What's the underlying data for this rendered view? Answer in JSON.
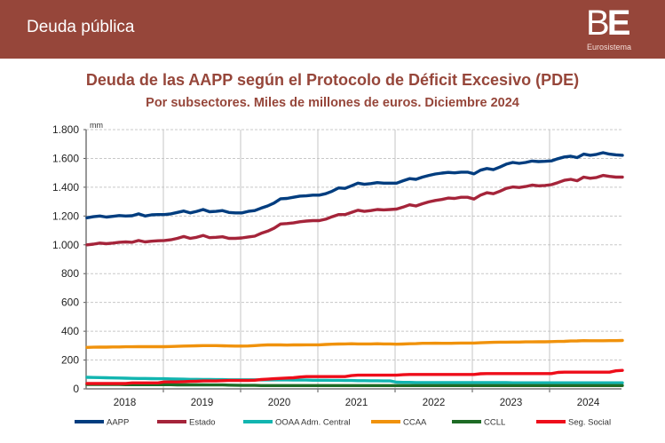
{
  "header": {
    "title": "Deuda pública",
    "logo_mark_b": "B",
    "logo_mark_e": "E",
    "logo_sub": "Eurosistema"
  },
  "chart_data": {
    "type": "line",
    "title": "Deuda de las AAPP según el Protocolo de Déficit Excesivo (PDE)",
    "subtitle": "Por subsectores. Miles de millones de euros. Diciembre 2024",
    "unit_label": "mm",
    "xlabel": "",
    "ylabel": "",
    "ylim": [
      0,
      1800
    ],
    "yticks": [
      0,
      200,
      400,
      600,
      800,
      1000,
      1200,
      1400,
      1600,
      1800
    ],
    "ytick_labels": [
      "0",
      "200",
      "400",
      "600",
      "800",
      "1.000",
      "1.200",
      "1.400",
      "1.600",
      "1.800"
    ],
    "x_start": "2018-01",
    "x_end": "2024-12",
    "frequency": "monthly",
    "xtick_labels": [
      "2018",
      "2019",
      "2020",
      "2021",
      "2022",
      "2023",
      "2024"
    ],
    "grid": true,
    "legend_position": "bottom",
    "series": [
      {
        "name": "AAPP",
        "color": "#003d7f",
        "values": [
          1188,
          1195,
          1200,
          1193,
          1198,
          1203,
          1200,
          1202,
          1215,
          1200,
          1208,
          1210,
          1210,
          1215,
          1225,
          1235,
          1222,
          1232,
          1245,
          1230,
          1232,
          1238,
          1225,
          1222,
          1222,
          1232,
          1238,
          1255,
          1270,
          1290,
          1320,
          1322,
          1330,
          1338,
          1340,
          1345,
          1345,
          1355,
          1372,
          1395,
          1392,
          1410,
          1428,
          1420,
          1425,
          1432,
          1428,
          1428,
          1428,
          1445,
          1460,
          1455,
          1470,
          1482,
          1492,
          1498,
          1503,
          1500,
          1505,
          1505,
          1493,
          1518,
          1530,
          1522,
          1540,
          1560,
          1572,
          1566,
          1572,
          1582,
          1578,
          1580,
          1583,
          1598,
          1610,
          1615,
          1606,
          1630,
          1622,
          1628,
          1640,
          1630,
          1625,
          1622
        ]
      },
      {
        "name": "Estado",
        "color": "#a5243a",
        "values": [
          1000,
          1005,
          1012,
          1008,
          1012,
          1018,
          1020,
          1018,
          1030,
          1020,
          1025,
          1028,
          1030,
          1035,
          1045,
          1058,
          1045,
          1052,
          1065,
          1050,
          1052,
          1056,
          1045,
          1045,
          1048,
          1055,
          1060,
          1080,
          1095,
          1115,
          1145,
          1148,
          1152,
          1160,
          1165,
          1168,
          1168,
          1178,
          1195,
          1210,
          1210,
          1225,
          1240,
          1232,
          1238,
          1245,
          1243,
          1245,
          1248,
          1262,
          1278,
          1270,
          1285,
          1298,
          1308,
          1315,
          1325,
          1322,
          1330,
          1330,
          1318,
          1345,
          1362,
          1355,
          1372,
          1392,
          1402,
          1398,
          1405,
          1415,
          1410,
          1412,
          1418,
          1432,
          1448,
          1455,
          1445,
          1470,
          1462,
          1468,
          1482,
          1475,
          1470,
          1470
        ]
      },
      {
        "name": "OOAA Adm. Central",
        "color": "#12b5b0",
        "values": [
          80,
          79,
          78,
          77,
          76,
          75,
          74,
          73,
          72,
          72,
          71,
          70,
          70,
          69,
          68,
          67,
          66,
          66,
          65,
          65,
          64,
          64,
          63,
          63,
          63,
          63,
          63,
          62,
          62,
          62,
          62,
          62,
          61,
          61,
          61,
          60,
          60,
          60,
          59,
          59,
          58,
          58,
          57,
          57,
          56,
          56,
          55,
          55,
          46,
          45,
          45,
          44,
          44,
          44,
          44,
          43,
          43,
          43,
          43,
          43,
          43,
          43,
          43,
          43,
          43,
          43,
          42,
          42,
          42,
          42,
          42,
          42,
          42,
          42,
          42,
          42,
          42,
          42,
          42,
          42,
          42,
          42,
          42,
          42
        ]
      },
      {
        "name": "CCAA",
        "color": "#f0920c",
        "values": [
          288,
          289,
          290,
          290,
          291,
          291,
          292,
          292,
          293,
          293,
          293,
          293,
          293,
          294,
          295,
          297,
          298,
          299,
          300,
          300,
          300,
          299,
          298,
          297,
          297,
          298,
          300,
          303,
          305,
          306,
          305,
          304,
          305,
          305,
          306,
          306,
          306,
          308,
          310,
          311,
          312,
          313,
          312,
          312,
          312,
          313,
          312,
          312,
          310,
          311,
          313,
          314,
          316,
          316,
          317,
          316,
          316,
          317,
          318,
          318,
          318,
          320,
          322,
          323,
          324,
          324,
          325,
          325,
          326,
          326,
          327,
          327,
          328,
          329,
          330,
          332,
          333,
          335,
          334,
          334,
          334,
          335,
          335,
          336
        ]
      },
      {
        "name": "CCLL",
        "color": "#1d6b25",
        "values": [
          30,
          30,
          30,
          30,
          30,
          30,
          29,
          29,
          29,
          29,
          29,
          29,
          29,
          29,
          28,
          28,
          28,
          28,
          28,
          27,
          27,
          27,
          26,
          25,
          24,
          24,
          24,
          23,
          23,
          23,
          23,
          23,
          23,
          23,
          23,
          23,
          23,
          23,
          23,
          23,
          23,
          23,
          23,
          23,
          23,
          23,
          23,
          23,
          23,
          23,
          23,
          23,
          23,
          23,
          23,
          23,
          23,
          23,
          23,
          23,
          23,
          23,
          23,
          23,
          23,
          23,
          23,
          23,
          23,
          23,
          23,
          23,
          23,
          23,
          23,
          23,
          23,
          23,
          23,
          23,
          23,
          23,
          23,
          23
        ]
      },
      {
        "name": "Seg. Social",
        "color": "#ee0d1a",
        "values": [
          37,
          37,
          37,
          37,
          37,
          37,
          37,
          41,
          41,
          41,
          41,
          41,
          48,
          48,
          48,
          50,
          52,
          53,
          55,
          55,
          55,
          57,
          58,
          58,
          58,
          58,
          60,
          65,
          67,
          70,
          73,
          75,
          77,
          82,
          85,
          85,
          85,
          85,
          85,
          85,
          85,
          92,
          95,
          95,
          95,
          95,
          95,
          95,
          95,
          98,
          100,
          100,
          100,
          100,
          100,
          100,
          100,
          100,
          100,
          100,
          100,
          105,
          106,
          106,
          106,
          106,
          106,
          106,
          106,
          106,
          106,
          106,
          106,
          114,
          116,
          116,
          116,
          116,
          116,
          116,
          116,
          116,
          125,
          128
        ]
      }
    ]
  }
}
